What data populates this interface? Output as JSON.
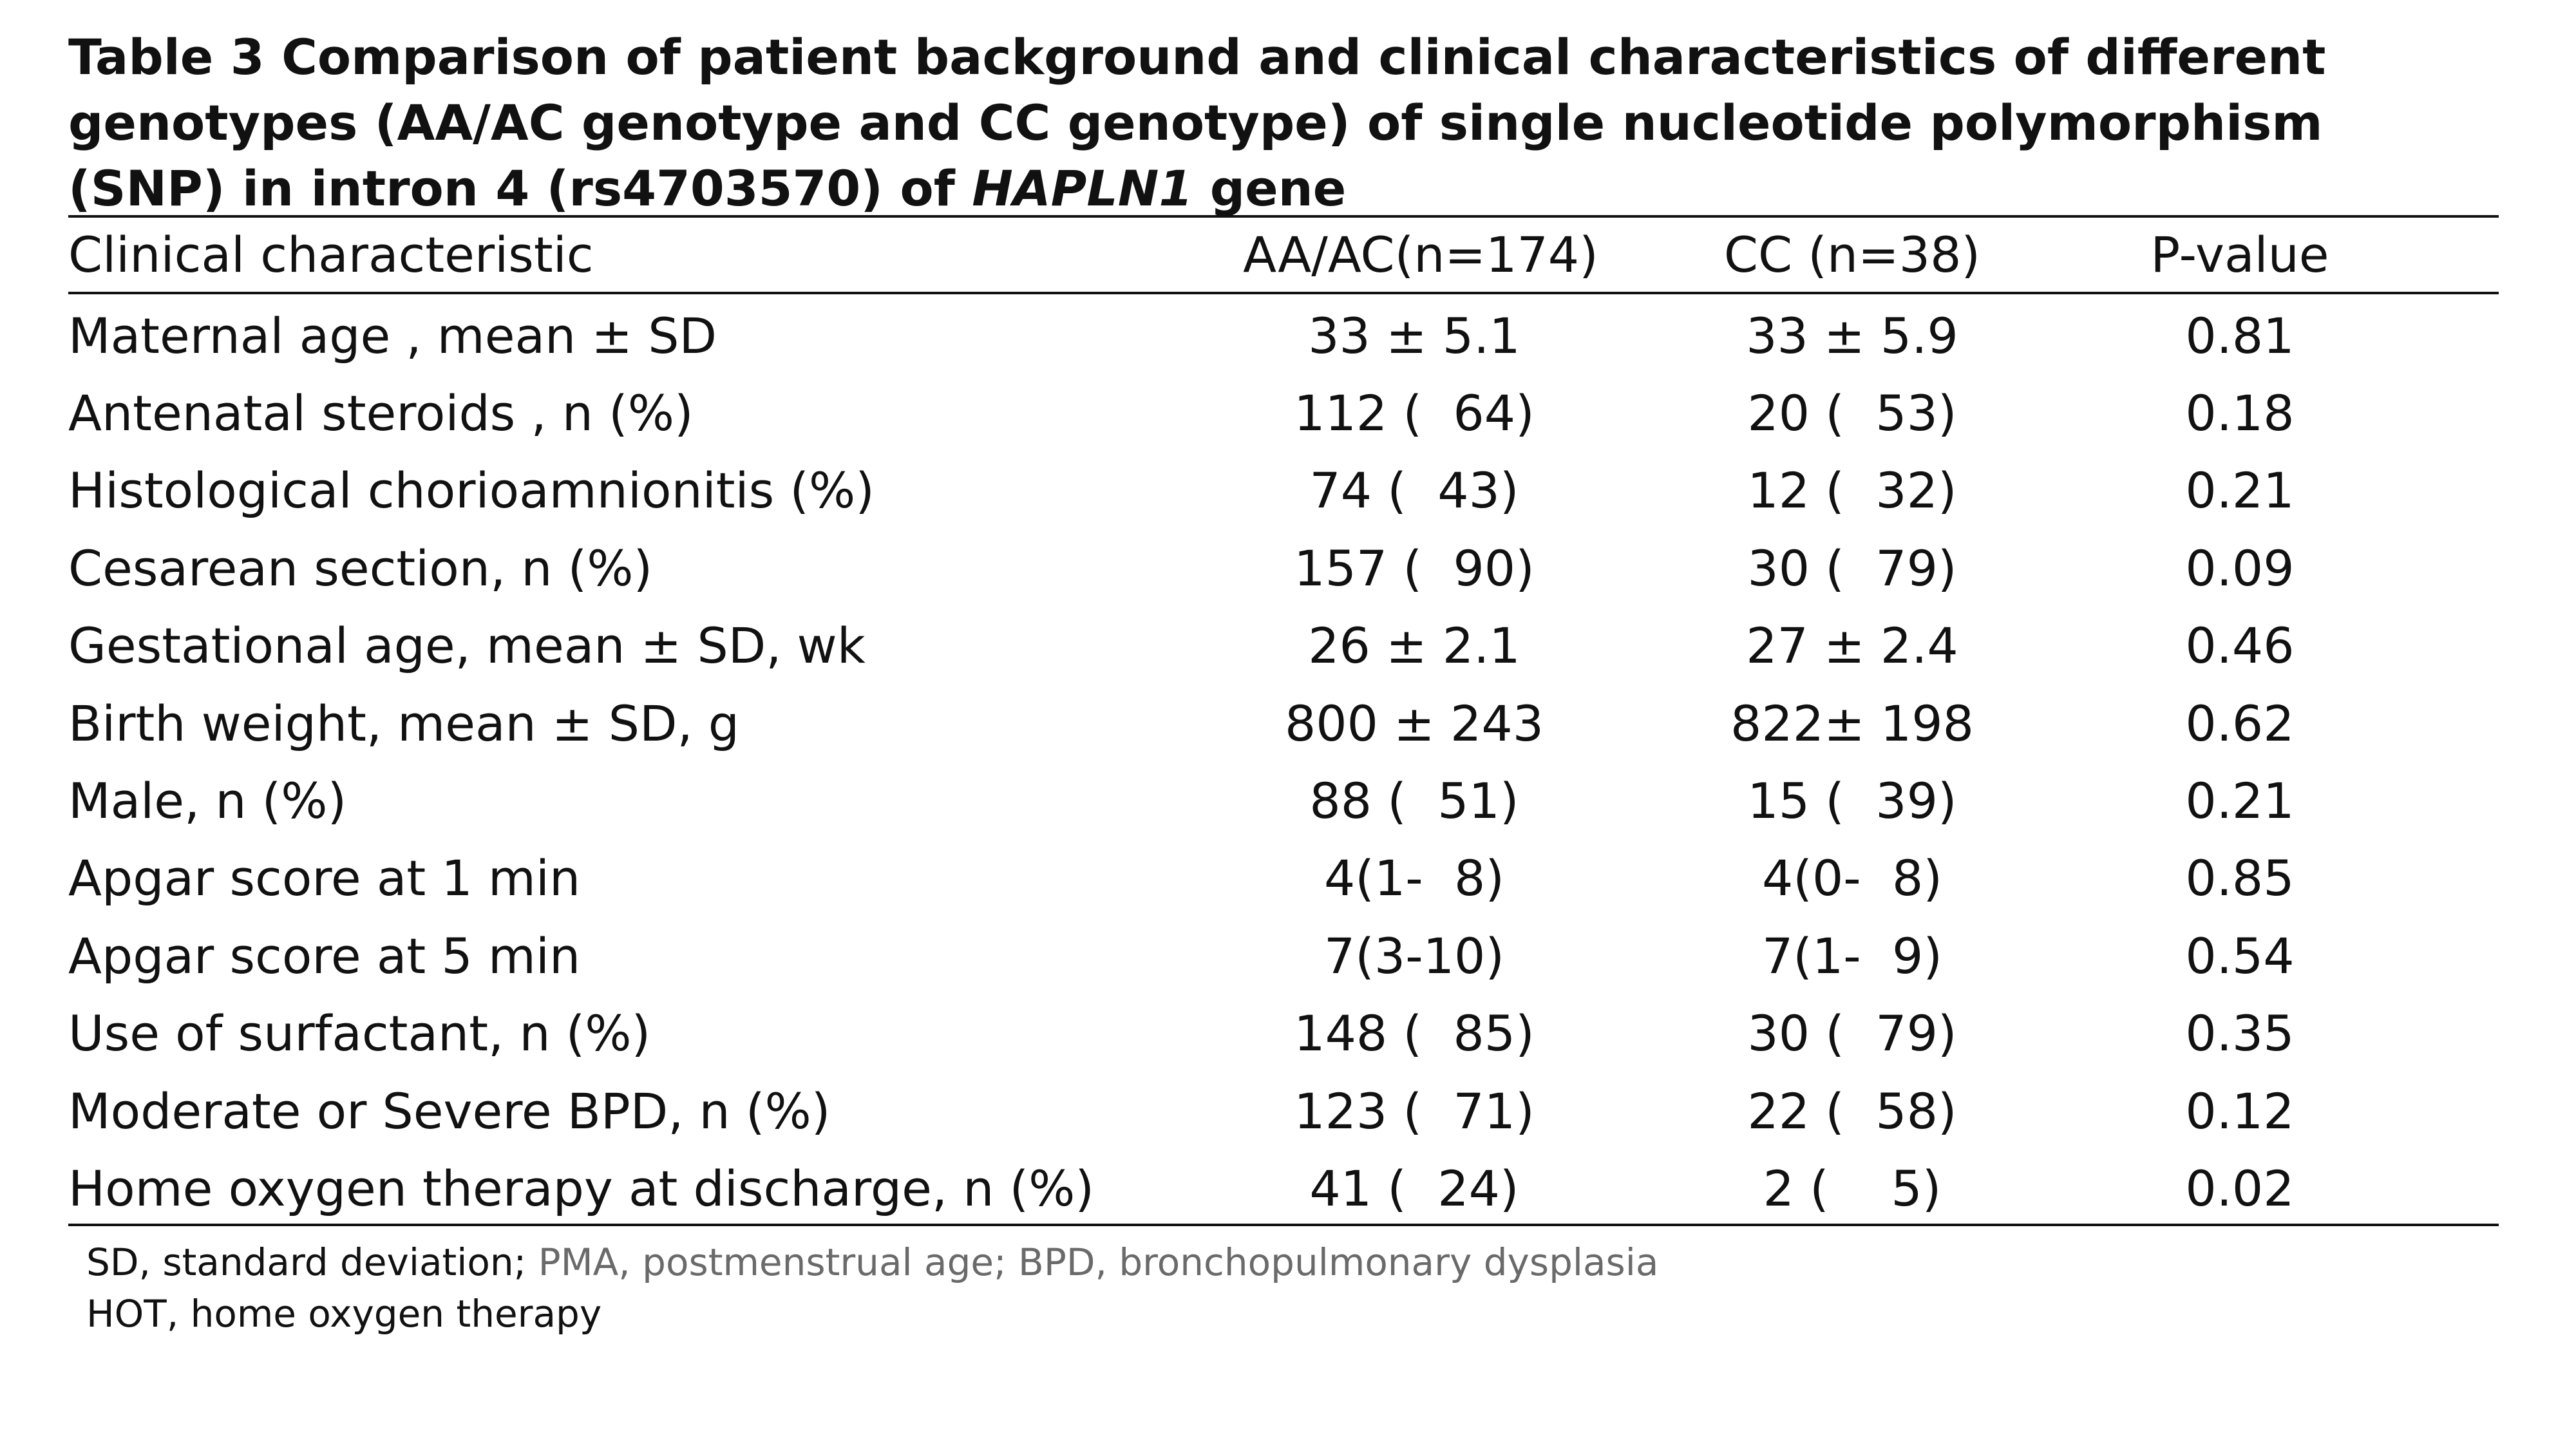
{
  "title": {
    "prefix": "Table 3  Comparison of patient background and clinical characteristics of different genotypes (AA/AC genotype and CC genotype) of single nucleotide polymorphism (SNP) in intron 4 (rs4703570) of ",
    "gene": "HAPLN1",
    "suffix": " gene"
  },
  "table": {
    "headers": [
      "Clinical characteristic",
      "AA/AC(n=174)",
      "CC (n=38)",
      "P-value"
    ],
    "rows": [
      [
        "Maternal age , mean ± SD",
        "33 ± 5.1",
        "33 ± 5.9",
        "0.81"
      ],
      [
        "Antenatal steroids , n (%)",
        "112 (  64)",
        "20 (  53)",
        "0.18"
      ],
      [
        "Histological chorioamnionitis (%)",
        "74 (  43)",
        "12 (  32)",
        "0.21"
      ],
      [
        "Cesarean section, n (%)",
        "157 (  90)",
        "30 (  79)",
        "0.09"
      ],
      [
        "Gestational age, mean ± SD, wk",
        "26 ± 2.1",
        "27 ± 2.4",
        "0.46"
      ],
      [
        "Birth weight, mean ± SD, g",
        "800 ± 243",
        "822± 198",
        "0.62"
      ],
      [
        "Male, n (%)",
        "88 (  51)",
        "15 (  39)",
        "0.21"
      ],
      [
        "Apgar score at 1 min",
        "4(1-  8)",
        "4(0-  8)",
        "0.85"
      ],
      [
        "Apgar score at 5 min",
        "7(3-10)",
        "7(1-  9)",
        "0.54"
      ],
      [
        "Use of surfactant, n (%)",
        "148 (  85)",
        "30 (  79)",
        "0.35"
      ],
      [
        "Moderate or Severe BPD, n (%)",
        "123 (  71)",
        "22 (  58)",
        "0.12"
      ],
      [
        "Home oxygen therapy at discharge, n (%)",
        "41 (  24)",
        "2 (    5)",
        "0.02"
      ]
    ]
  },
  "footnotes": {
    "line1_dark": "SD, standard deviation; ",
    "line1_gray": "PMA, postmenstrual age; BPD, bronchopulmonary dysplasia",
    "line2": "HOT, home oxygen therapy"
  },
  "colors": {
    "text": "#111111",
    "footnote_gray": "#6a6a6a",
    "background": "#ffffff"
  }
}
